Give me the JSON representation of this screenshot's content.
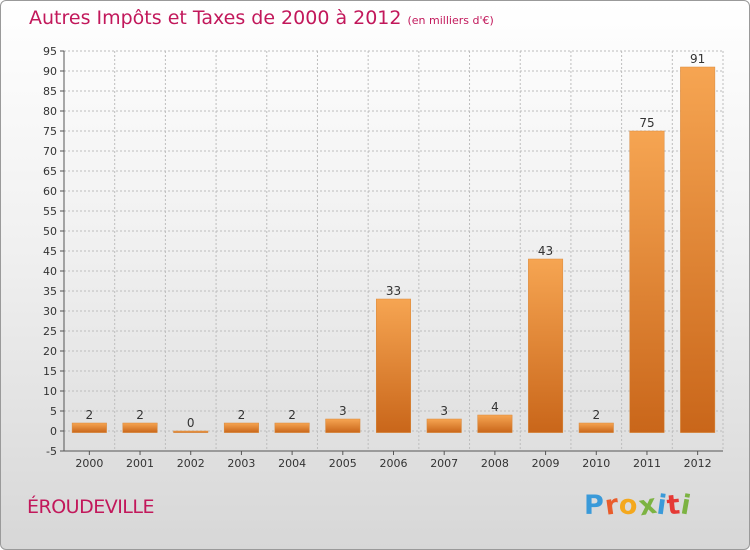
{
  "header": {
    "title": "Autres Impôts et Taxes de 2000 à 2012",
    "subtitle": "(en milliers d'€)"
  },
  "footer": {
    "commune": "ÉROUDEVILLE",
    "logo_letters": [
      "P",
      "r",
      "o",
      "x",
      "i",
      "t",
      "i"
    ],
    "logo_colors": [
      "#3a9ad9",
      "#e95c2b",
      "#f4a81d",
      "#7cb342",
      "#3a9ad9",
      "#e53935",
      "#7cb342"
    ]
  },
  "colors": {
    "bar_top": "#f6a552",
    "bar_bottom": "#c9661a",
    "title": "#c2185b",
    "grid": "#bdbdbd"
  },
  "chart_data": {
    "type": "bar",
    "categories": [
      "2000",
      "2001",
      "2002",
      "2003",
      "2004",
      "2005",
      "2006",
      "2007",
      "2008",
      "2009",
      "2010",
      "2011",
      "2012"
    ],
    "values": [
      2,
      2,
      0,
      2,
      2,
      3,
      33,
      3,
      4,
      43,
      2,
      75,
      91
    ],
    "title": "Autres Impôts et Taxes de 2000 à 2012",
    "subtitle": "(en milliers d'€)",
    "xlabel": "",
    "ylabel": "",
    "ylim": [
      -5,
      95
    ],
    "yticks": [
      -5,
      0,
      5,
      10,
      15,
      20,
      25,
      30,
      35,
      40,
      45,
      50,
      55,
      60,
      65,
      70,
      75,
      80,
      85,
      90,
      95
    ],
    "grid": true
  }
}
